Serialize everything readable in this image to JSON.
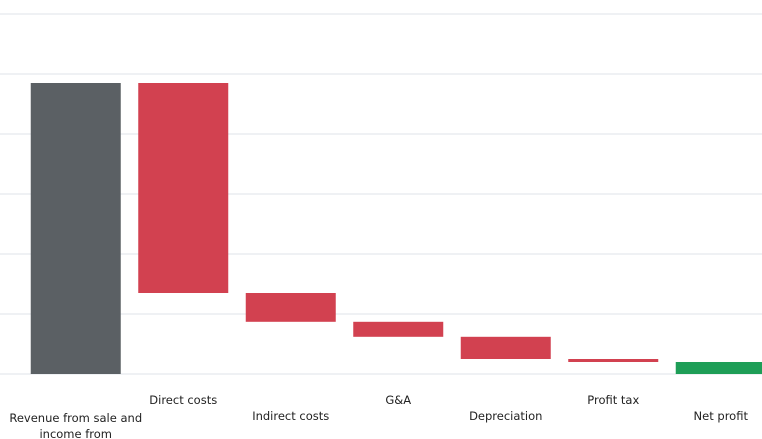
{
  "chart_data": {
    "type": "waterfall",
    "categories": [
      "Revenue from sale and income from investment",
      "Direct costs",
      "Indirect costs",
      "G&A",
      "Depreciation",
      "Profit tax",
      "Net profit"
    ],
    "values": [
      4.85,
      -3.5,
      -0.48,
      -0.25,
      -0.37,
      -0.05,
      0.2
    ],
    "start_color": "#5b6064",
    "decrease_color": "#d24150",
    "end_color": "#1e9e57",
    "ylim": [
      0,
      6
    ],
    "yticks": [
      0,
      1,
      2,
      3,
      4,
      5,
      6
    ],
    "grid": true
  }
}
